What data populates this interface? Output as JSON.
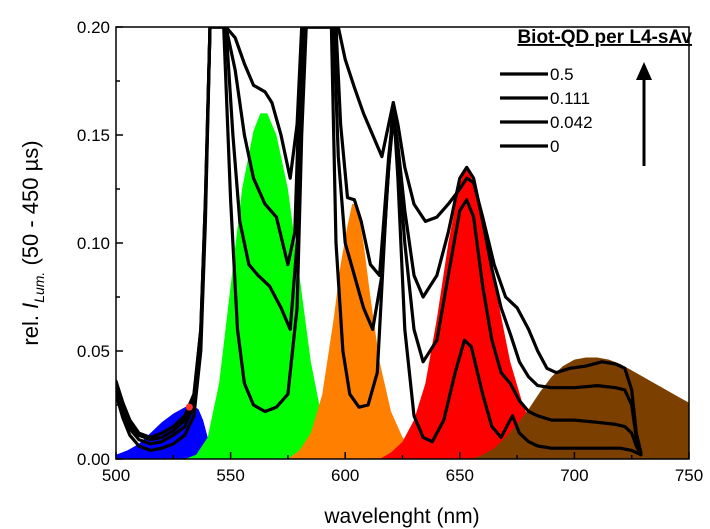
{
  "chart_data": {
    "type": "line",
    "title": "",
    "xlabel": "wavelenght (nm)",
    "ylabel_prefix": "rel. ",
    "ylabel_italic": "I",
    "ylabel_sub": "Lum.",
    "ylabel_suffix": " (50 - 450 µs)",
    "xlim": [
      500,
      750
    ],
    "ylim": [
      0,
      0.2
    ],
    "xticks": [
      500,
      550,
      600,
      650,
      700,
      750
    ],
    "yticks": [
      0.0,
      0.05,
      0.1,
      0.15,
      0.2
    ],
    "xtick_labels": [
      "500",
      "550",
      "600",
      "650",
      "700",
      "750"
    ],
    "ytick_labels": [
      "0.00",
      "0.05",
      "0.10",
      "0.15",
      "0.20"
    ],
    "legend": {
      "title": "Biot-QD per L4-sAv",
      "entries": [
        "0.5",
        "0.111",
        "0.042",
        "0"
      ],
      "placement": "top-right",
      "arrow": "up"
    },
    "filled_bands": [
      {
        "color": "#0000ff",
        "points": [
          [
            500,
            0.002
          ],
          [
            505,
            0.004
          ],
          [
            510,
            0.007
          ],
          [
            515,
            0.012
          ],
          [
            520,
            0.017
          ],
          [
            525,
            0.021
          ],
          [
            530,
            0.024
          ],
          [
            533,
            0.025
          ],
          [
            536,
            0.023
          ],
          [
            538,
            0.018
          ],
          [
            540,
            0.01
          ],
          [
            543,
            0.003
          ],
          [
            546,
            0.0
          ]
        ]
      },
      {
        "color": "#00ff00",
        "points": [
          [
            530,
            0.0
          ],
          [
            535,
            0.002
          ],
          [
            540,
            0.01
          ],
          [
            545,
            0.035
          ],
          [
            550,
            0.08
          ],
          [
            555,
            0.125
          ],
          [
            560,
            0.152
          ],
          [
            563,
            0.16
          ],
          [
            566,
            0.16
          ],
          [
            570,
            0.15
          ],
          [
            575,
            0.125
          ],
          [
            580,
            0.085
          ],
          [
            585,
            0.045
          ],
          [
            590,
            0.018
          ],
          [
            595,
            0.007
          ],
          [
            600,
            0.002
          ],
          [
            605,
            0.0
          ]
        ]
      },
      {
        "color": "#ff8000",
        "points": [
          [
            575,
            0.0
          ],
          [
            580,
            0.004
          ],
          [
            585,
            0.012
          ],
          [
            590,
            0.03
          ],
          [
            595,
            0.065
          ],
          [
            598,
            0.09
          ],
          [
            601,
            0.108
          ],
          [
            603,
            0.118
          ],
          [
            605,
            0.118
          ],
          [
            608,
            0.1
          ],
          [
            611,
            0.075
          ],
          [
            615,
            0.045
          ],
          [
            620,
            0.022
          ],
          [
            625,
            0.01
          ],
          [
            630,
            0.004
          ],
          [
            635,
            0.0
          ]
        ]
      },
      {
        "color": "#ff0000",
        "points": [
          [
            615,
            0.0
          ],
          [
            620,
            0.003
          ],
          [
            625,
            0.008
          ],
          [
            630,
            0.018
          ],
          [
            635,
            0.035
          ],
          [
            640,
            0.065
          ],
          [
            645,
            0.1
          ],
          [
            650,
            0.128
          ],
          [
            653,
            0.135
          ],
          [
            656,
            0.128
          ],
          [
            660,
            0.11
          ],
          [
            664,
            0.088
          ],
          [
            668,
            0.066
          ],
          [
            672,
            0.045
          ],
          [
            677,
            0.027
          ],
          [
            682,
            0.013
          ],
          [
            688,
            0.004
          ],
          [
            695,
            0.0
          ]
        ]
      },
      {
        "color": "#7b3f00",
        "points": [
          [
            655,
            0.0
          ],
          [
            660,
            0.002
          ],
          [
            665,
            0.005
          ],
          [
            670,
            0.01
          ],
          [
            675,
            0.016
          ],
          [
            680,
            0.023
          ],
          [
            685,
            0.031
          ],
          [
            690,
            0.038
          ],
          [
            695,
            0.043
          ],
          [
            700,
            0.046
          ],
          [
            705,
            0.047
          ],
          [
            710,
            0.047
          ],
          [
            715,
            0.046
          ],
          [
            720,
            0.044
          ],
          [
            725,
            0.041
          ],
          [
            730,
            0.038
          ],
          [
            735,
            0.035
          ],
          [
            740,
            0.032
          ],
          [
            745,
            0.029
          ],
          [
            750,
            0.026
          ],
          [
            750,
            0.0
          ]
        ]
      }
    ],
    "series": [
      {
        "name": "0.5",
        "points": [
          [
            500,
            0.036
          ],
          [
            503,
            0.026
          ],
          [
            506,
            0.018
          ],
          [
            510,
            0.012
          ],
          [
            515,
            0.01
          ],
          [
            520,
            0.012
          ],
          [
            525,
            0.015
          ],
          [
            530,
            0.02
          ],
          [
            534,
            0.03
          ],
          [
            537,
            0.06
          ],
          [
            539,
            0.12
          ],
          [
            541,
            0.2
          ],
          [
            548,
            0.2
          ],
          [
            552,
            0.195
          ],
          [
            556,
            0.183
          ],
          [
            560,
            0.173
          ],
          [
            565,
            0.17
          ],
          [
            568,
            0.165
          ],
          [
            572,
            0.15
          ],
          [
            576,
            0.13
          ],
          [
            579,
            0.155
          ],
          [
            581,
            0.2
          ],
          [
            597,
            0.2
          ],
          [
            600,
            0.185
          ],
          [
            604,
            0.172
          ],
          [
            608,
            0.16
          ],
          [
            612,
            0.15
          ],
          [
            616,
            0.14
          ],
          [
            619,
            0.155
          ],
          [
            621,
            0.165
          ],
          [
            623,
            0.155
          ],
          [
            626,
            0.135
          ],
          [
            630,
            0.118
          ],
          [
            635,
            0.11
          ],
          [
            640,
            0.112
          ],
          [
            645,
            0.118
          ],
          [
            650,
            0.125
          ],
          [
            653,
            0.13
          ],
          [
            656,
            0.128
          ],
          [
            660,
            0.112
          ],
          [
            665,
            0.09
          ],
          [
            670,
            0.075
          ],
          [
            675,
            0.07
          ],
          [
            680,
            0.06
          ],
          [
            684,
            0.05
          ],
          [
            688,
            0.042
          ],
          [
            692,
            0.04
          ],
          [
            698,
            0.042
          ],
          [
            705,
            0.043
          ],
          [
            712,
            0.045
          ],
          [
            718,
            0.044
          ],
          [
            722,
            0.042
          ],
          [
            725,
            0.032
          ],
          [
            727,
            0.012
          ],
          [
            729,
            0.003
          ]
        ]
      },
      {
        "name": "0.111",
        "points": [
          [
            500,
            0.034
          ],
          [
            503,
            0.024
          ],
          [
            506,
            0.016
          ],
          [
            510,
            0.011
          ],
          [
            515,
            0.009
          ],
          [
            520,
            0.01
          ],
          [
            525,
            0.013
          ],
          [
            530,
            0.018
          ],
          [
            534,
            0.028
          ],
          [
            537,
            0.06
          ],
          [
            539,
            0.12
          ],
          [
            541,
            0.2
          ],
          [
            548,
            0.2
          ],
          [
            552,
            0.18
          ],
          [
            556,
            0.15
          ],
          [
            560,
            0.13
          ],
          [
            565,
            0.118
          ],
          [
            570,
            0.112
          ],
          [
            575,
            0.09
          ],
          [
            578,
            0.105
          ],
          [
            580,
            0.17
          ],
          [
            582,
            0.2
          ],
          [
            596,
            0.2
          ],
          [
            598,
            0.155
          ],
          [
            601,
            0.121
          ],
          [
            604,
            0.12
          ],
          [
            607,
            0.11
          ],
          [
            611,
            0.09
          ],
          [
            615,
            0.085
          ],
          [
            619,
            0.14
          ],
          [
            621,
            0.16
          ],
          [
            623,
            0.145
          ],
          [
            626,
            0.115
          ],
          [
            630,
            0.085
          ],
          [
            634,
            0.075
          ],
          [
            640,
            0.085
          ],
          [
            645,
            0.105
          ],
          [
            650,
            0.13
          ],
          [
            653,
            0.135
          ],
          [
            656,
            0.13
          ],
          [
            660,
            0.11
          ],
          [
            664,
            0.088
          ],
          [
            668,
            0.07
          ],
          [
            672,
            0.058
          ],
          [
            676,
            0.045
          ],
          [
            680,
            0.038
          ],
          [
            684,
            0.034
          ],
          [
            690,
            0.033
          ],
          [
            700,
            0.033
          ],
          [
            710,
            0.034
          ],
          [
            718,
            0.033
          ],
          [
            722,
            0.032
          ],
          [
            725,
            0.025
          ],
          [
            727,
            0.01
          ],
          [
            729,
            0.003
          ]
        ]
      },
      {
        "name": "0.042",
        "points": [
          [
            500,
            0.033
          ],
          [
            503,
            0.022
          ],
          [
            506,
            0.014
          ],
          [
            510,
            0.009
          ],
          [
            515,
            0.007
          ],
          [
            520,
            0.008
          ],
          [
            525,
            0.011
          ],
          [
            530,
            0.015
          ],
          [
            534,
            0.025
          ],
          [
            537,
            0.055
          ],
          [
            539,
            0.115
          ],
          [
            541,
            0.2
          ],
          [
            548,
            0.2
          ],
          [
            551,
            0.15
          ],
          [
            554,
            0.11
          ],
          [
            558,
            0.09
          ],
          [
            562,
            0.085
          ],
          [
            567,
            0.08
          ],
          [
            572,
            0.07
          ],
          [
            576,
            0.06
          ],
          [
            579,
            0.1
          ],
          [
            581,
            0.17
          ],
          [
            583,
            0.2
          ],
          [
            595,
            0.2
          ],
          [
            597,
            0.14
          ],
          [
            600,
            0.1
          ],
          [
            604,
            0.085
          ],
          [
            608,
            0.07
          ],
          [
            612,
            0.06
          ],
          [
            616,
            0.085
          ],
          [
            619,
            0.135
          ],
          [
            621,
            0.158
          ],
          [
            623,
            0.14
          ],
          [
            626,
            0.1
          ],
          [
            630,
            0.06
          ],
          [
            634,
            0.045
          ],
          [
            640,
            0.055
          ],
          [
            645,
            0.085
          ],
          [
            650,
            0.115
          ],
          [
            653,
            0.12
          ],
          [
            656,
            0.112
          ],
          [
            660,
            0.08
          ],
          [
            664,
            0.055
          ],
          [
            668,
            0.04
          ],
          [
            672,
            0.035
          ],
          [
            676,
            0.027
          ],
          [
            680,
            0.022
          ],
          [
            684,
            0.02
          ],
          [
            690,
            0.018
          ],
          [
            700,
            0.018
          ],
          [
            710,
            0.017
          ],
          [
            718,
            0.016
          ],
          [
            722,
            0.015
          ],
          [
            725,
            0.012
          ],
          [
            727,
            0.006
          ],
          [
            729,
            0.002
          ]
        ]
      },
      {
        "name": "0",
        "points": [
          [
            500,
            0.03
          ],
          [
            503,
            0.019
          ],
          [
            506,
            0.011
          ],
          [
            510,
            0.006
          ],
          [
            515,
            0.004
          ],
          [
            520,
            0.005
          ],
          [
            525,
            0.007
          ],
          [
            530,
            0.011
          ],
          [
            534,
            0.02
          ],
          [
            537,
            0.05
          ],
          [
            539,
            0.11
          ],
          [
            541,
            0.2
          ],
          [
            547,
            0.2
          ],
          [
            550,
            0.12
          ],
          [
            553,
            0.06
          ],
          [
            556,
            0.035
          ],
          [
            560,
            0.025
          ],
          [
            565,
            0.022
          ],
          [
            570,
            0.024
          ],
          [
            575,
            0.03
          ],
          [
            579,
            0.07
          ],
          [
            581,
            0.15
          ],
          [
            583,
            0.2
          ],
          [
            594,
            0.2
          ],
          [
            596,
            0.1
          ],
          [
            599,
            0.05
          ],
          [
            602,
            0.03
          ],
          [
            606,
            0.024
          ],
          [
            610,
            0.025
          ],
          [
            614,
            0.04
          ],
          [
            618,
            0.12
          ],
          [
            621,
            0.165
          ],
          [
            623,
            0.13
          ],
          [
            626,
            0.06
          ],
          [
            630,
            0.02
          ],
          [
            634,
            0.01
          ],
          [
            638,
            0.008
          ],
          [
            643,
            0.018
          ],
          [
            648,
            0.04
          ],
          [
            652,
            0.055
          ],
          [
            655,
            0.052
          ],
          [
            660,
            0.03
          ],
          [
            664,
            0.015
          ],
          [
            668,
            0.01
          ],
          [
            671,
            0.016
          ],
          [
            673,
            0.02
          ],
          [
            676,
            0.012
          ],
          [
            680,
            0.008
          ],
          [
            684,
            0.006
          ],
          [
            690,
            0.005
          ],
          [
            700,
            0.005
          ],
          [
            710,
            0.005
          ],
          [
            720,
            0.005
          ],
          [
            725,
            0.004
          ],
          [
            729,
            0.002
          ]
        ]
      }
    ],
    "highlight_point": {
      "x": 532,
      "y": 0.024,
      "color": "#ff3030"
    }
  }
}
